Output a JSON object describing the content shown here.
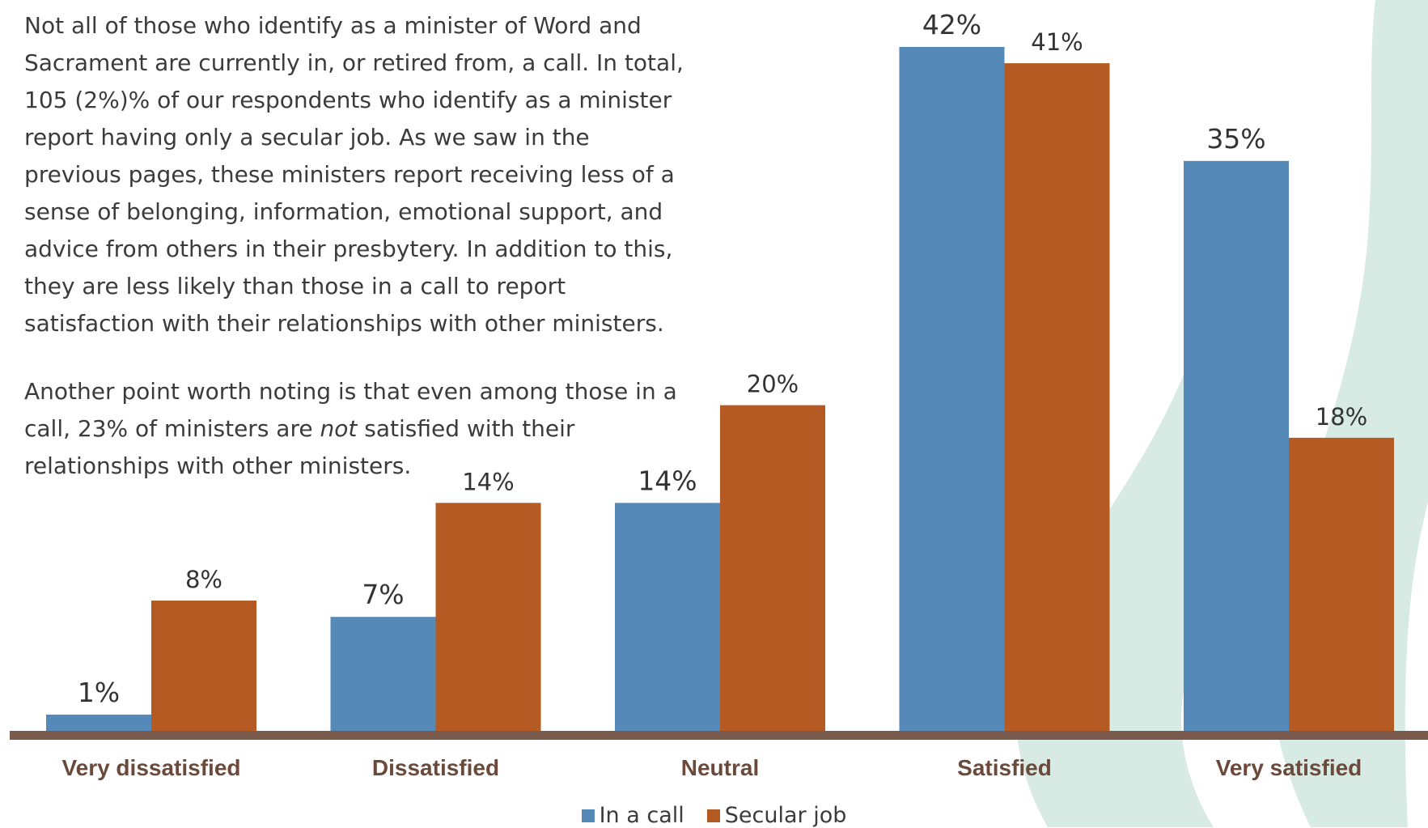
{
  "text": {
    "paragraph1": "Not all of those who identify as a minister of Word and Sacrament are currently in, or retired from, a call. In total, 105 (2%)% of our respondents who identify as a minister report having only a secular job. As we saw in the previous pages, these ministers report receiving less of a sense of belonging, information, emotional support, and advice from others in their presbytery. In addition to this, they are less likely than those in a call to report satisfaction with their relationships with other ministers.",
    "paragraph2_before": "Another point worth noting is that even among those in a call, 23% of ministers are ",
    "paragraph2_emph": "not",
    "paragraph2_after": " satisfied with their relationships with other ministers."
  },
  "colors": {
    "in_a_call": "#5489b8",
    "secular_job": "#b55a22",
    "axis": "#7a5a4d",
    "category_label": "#6b4a3c",
    "background_flame": "#d7ebe4"
  },
  "chart_data": {
    "type": "bar",
    "categories": [
      "Very dissatisfied",
      "Dissatisfied",
      "Neutral",
      "Satisfied",
      "Very satisfied"
    ],
    "series": [
      {
        "name": "In a call",
        "values": [
          1,
          7,
          14,
          42,
          35
        ],
        "labels": [
          "1%",
          "7%",
          "14%",
          "42%",
          "35%"
        ]
      },
      {
        "name": "Secular job",
        "values": [
          8,
          14,
          20,
          41,
          18
        ],
        "labels": [
          "8%",
          "14%",
          "20%",
          "41%",
          "18%"
        ]
      }
    ],
    "ylim": [
      0,
      42
    ],
    "grid": false,
    "legend_position": "bottom-center",
    "xlabel": "",
    "ylabel": ""
  }
}
